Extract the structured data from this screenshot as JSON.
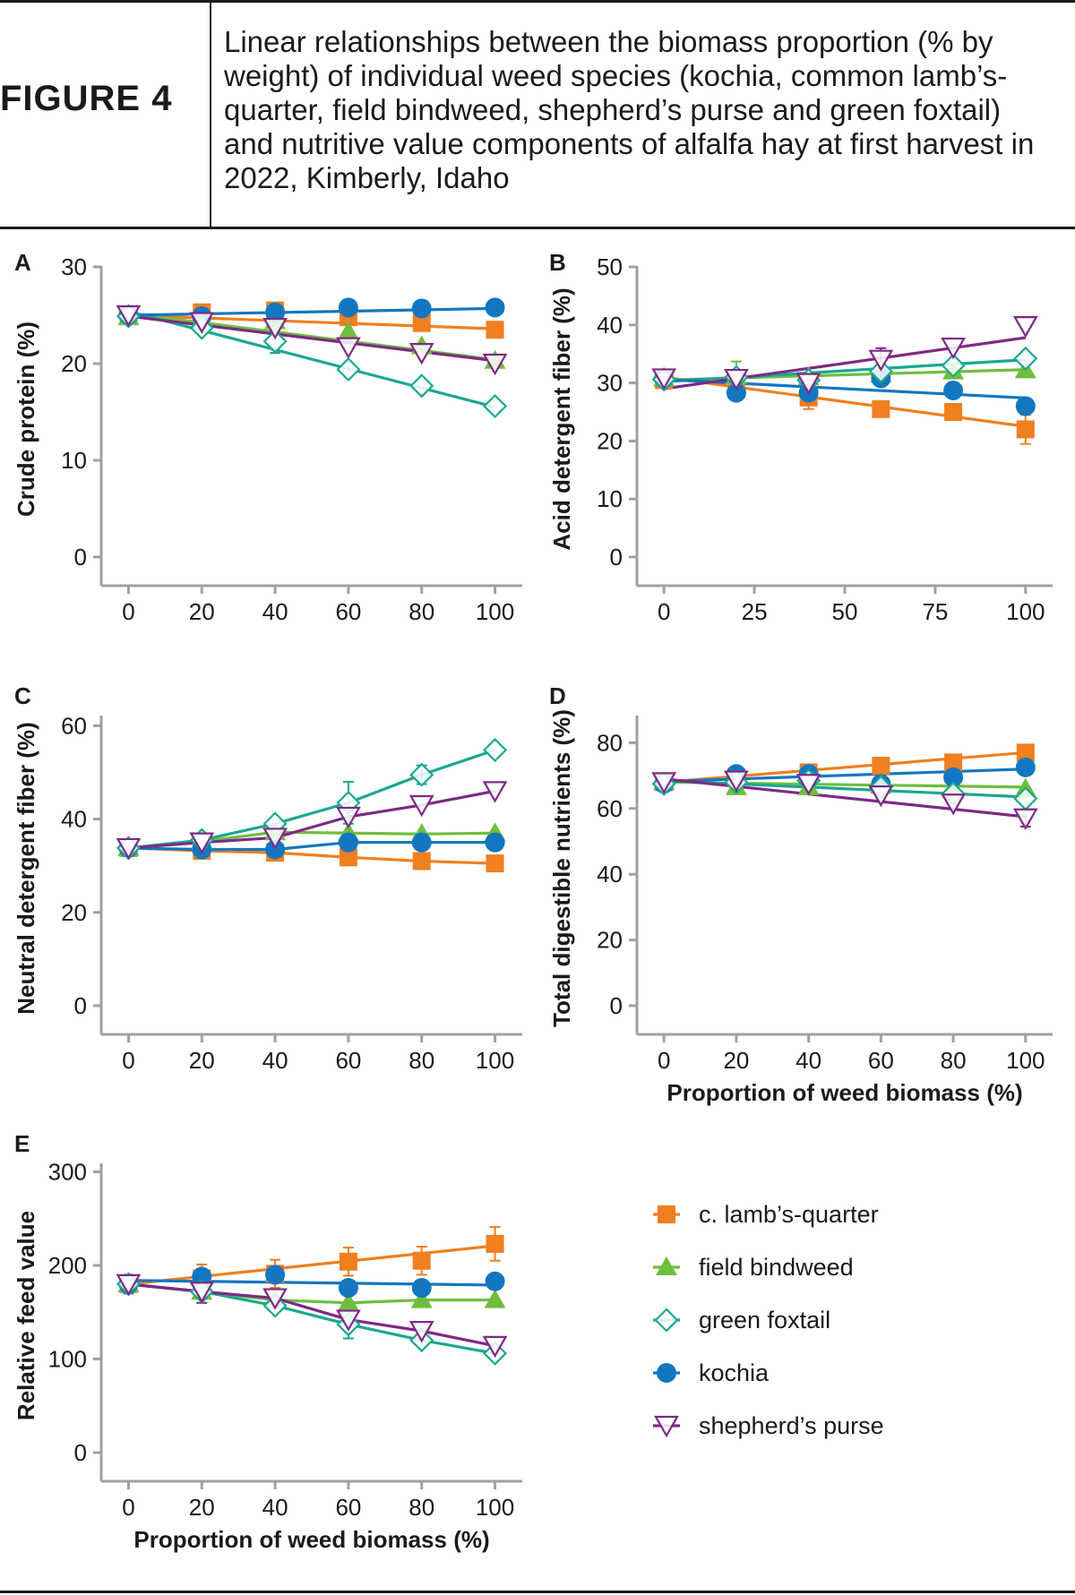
{
  "figure": {
    "label": "FIGURE 4",
    "title": "Linear relationships between the biomass proportion (% by weight) of individual weed species (kochia, common lamb’s-quarter, field bindweed, shepherd’s purse and green foxtail) and nutritive value components of alfalfa hay at first harvest in 2022, Kimberly, Idaho"
  },
  "colors": {
    "lambsquarter": "#f07f1f",
    "bindweed": "#6fbe3f",
    "foxtail": "#1aa88f",
    "kochia": "#1277c0",
    "shepherd": "#7d2a85",
    "axis": "#a0a0a0"
  },
  "legend": [
    {
      "key": "lambsquarter",
      "label": "c. lamb’s-quarter",
      "marker": "square-filled"
    },
    {
      "key": "bindweed",
      "label": "field bindweed",
      "marker": "triangle-filled"
    },
    {
      "key": "foxtail",
      "label": "green foxtail",
      "marker": "diamond-open"
    },
    {
      "key": "kochia",
      "label": "kochia",
      "marker": "circle-filled"
    },
    {
      "key": "shepherd",
      "label": "shepherd’s purse",
      "marker": "triangle-down-open"
    }
  ],
  "chart_data": [
    {
      "panel": "A",
      "type": "scatter",
      "ylabel": "Crude protein (%)",
      "xlabel": "",
      "x": [
        0,
        20,
        40,
        60,
        80,
        100
      ],
      "xticks": [
        0,
        20,
        40,
        60,
        80,
        100
      ],
      "yticks": [
        0,
        10,
        20,
        30
      ],
      "xlim": [
        -5,
        105
      ],
      "ylim": [
        0,
        30
      ],
      "series": [
        {
          "key": "lambsquarter",
          "values": [
            25,
            25.3,
            25.5,
            24.8,
            24.2,
            23.5
          ],
          "fit": [
            25,
            23.6
          ]
        },
        {
          "key": "bindweed",
          "values": [
            24.8,
            24.6,
            24.4,
            23.3,
            21.8,
            20.3
          ],
          "fit": [
            25.2,
            20.4
          ]
        },
        {
          "key": "foxtail",
          "values": [
            24.9,
            23.7,
            22.3,
            19.4,
            17.7,
            15.6
          ],
          "fit": [
            25.4,
            15.5
          ]
        },
        {
          "key": "kochia",
          "values": [
            25,
            24.9,
            25.3,
            25.8,
            25.7,
            25.8
          ],
          "fit": [
            25,
            25.7
          ]
        },
        {
          "key": "shepherd",
          "values": [
            25,
            24.3,
            23.7,
            21.7,
            21.1,
            20
          ],
          "fit": [
            24.9,
            20.3
          ]
        }
      ],
      "errors": [
        {
          "key": "foxtail",
          "x": 40,
          "y": 22.3,
          "err": 1.2
        }
      ]
    },
    {
      "panel": "B",
      "type": "scatter",
      "ylabel": "Acid detergent fiber (%)",
      "xlabel": "",
      "x": [
        0,
        20,
        40,
        60,
        80,
        100
      ],
      "xticks": [
        0,
        25,
        50,
        75,
        100
      ],
      "yticks": [
        0,
        10,
        20,
        30,
        40,
        50
      ],
      "xlim": [
        -5,
        105
      ],
      "ylim": [
        0,
        50
      ],
      "series": [
        {
          "key": "lambsquarter",
          "values": [
            30.5,
            29.5,
            27.5,
            25.5,
            25,
            22
          ],
          "fit": [
            31,
            22.5
          ]
        },
        {
          "key": "bindweed",
          "values": [
            30.8,
            31.2,
            31,
            31.5,
            32,
            32.2
          ],
          "fit": [
            30.5,
            32.3
          ]
        },
        {
          "key": "foxtail",
          "values": [
            30.6,
            31,
            30.5,
            32,
            33,
            34.2
          ],
          "fit": [
            30.2,
            34
          ]
        },
        {
          "key": "kochia",
          "values": [
            30.8,
            28.3,
            28.3,
            30.8,
            28.7,
            26
          ],
          "fit": [
            30.6,
            27.4
          ]
        },
        {
          "key": "shepherd",
          "values": [
            30.8,
            30.7,
            30,
            34,
            36.1,
            39.8
          ],
          "fit": [
            29,
            37.8
          ]
        }
      ],
      "errors": [
        {
          "key": "bindweed",
          "x": 20,
          "y": 31.2,
          "err": 2.5
        },
        {
          "key": "lambsquarter",
          "x": 40,
          "y": 27.5,
          "err": 2
        },
        {
          "key": "shepherd",
          "x": 60,
          "y": 34,
          "err": 2
        },
        {
          "key": "lambsquarter",
          "x": 100,
          "y": 22,
          "err": 2.5
        }
      ]
    },
    {
      "panel": "C",
      "type": "scatter",
      "ylabel": "Neutral detergent fiber (%)",
      "xlabel": "",
      "x": [
        0,
        20,
        40,
        60,
        80,
        100
      ],
      "xticks": [
        0,
        20,
        40,
        60,
        80,
        100
      ],
      "yticks": [
        0,
        20,
        40,
        60
      ],
      "xlim": [
        -5,
        105
      ],
      "ylim": [
        0,
        62
      ],
      "series": [
        {
          "key": "lambsquarter",
          "values": [
            33.8,
            33.2,
            32.8,
            31.8,
            31,
            30.5
          ],
          "fit": [
            33.8,
            31
          ],
          "fit_type": "curve"
        },
        {
          "key": "bindweed",
          "values": [
            33.8,
            35.2,
            37.2,
            37,
            36.8,
            37
          ],
          "fit": [
            33.8,
            37
          ],
          "fit_type": "curve"
        },
        {
          "key": "foxtail",
          "values": [
            33.8,
            35.5,
            39,
            43.5,
            49.5,
            54.8
          ],
          "fit": [
            33.8,
            54.8
          ],
          "fit_type": "curve"
        },
        {
          "key": "kochia",
          "values": [
            33.8,
            33.5,
            33.5,
            35,
            35,
            35
          ],
          "fit": [
            33.8,
            35
          ],
          "fit_type": "curve"
        },
        {
          "key": "shepherd",
          "values": [
            33.8,
            35,
            36,
            40.5,
            43,
            46
          ],
          "fit": [
            33.8,
            46
          ],
          "fit_type": "curve"
        }
      ],
      "errors": [
        {
          "key": "foxtail",
          "x": 60,
          "y": 43.5,
          "err": 4.5
        },
        {
          "key": "foxtail",
          "x": 80,
          "y": 49.5,
          "err": 2
        }
      ]
    },
    {
      "panel": "D",
      "type": "scatter",
      "ylabel": "Total digestible nutrients (%)",
      "xlabel": "Proportion of weed biomass (%)",
      "x": [
        0,
        20,
        40,
        60,
        80,
        100
      ],
      "xticks": [
        0,
        20,
        40,
        60,
        80,
        100
      ],
      "yticks": [
        0,
        20,
        40,
        60,
        80
      ],
      "xlim": [
        -5,
        105
      ],
      "ylim": [
        0,
        88
      ],
      "series": [
        {
          "key": "lambsquarter",
          "values": [
            68,
            69.5,
            71,
            73,
            74,
            77
          ],
          "fit": [
            68,
            77
          ]
        },
        {
          "key": "bindweed",
          "values": [
            68,
            66.5,
            66.5,
            67,
            65.5,
            66
          ],
          "fit": [
            68,
            66.5
          ]
        },
        {
          "key": "foxtail",
          "values": [
            67.5,
            68,
            68.5,
            66.5,
            64.5,
            63
          ],
          "fit": [
            68.5,
            63.5
          ]
        },
        {
          "key": "kochia",
          "values": [
            67.5,
            70.5,
            70.5,
            67.5,
            69.5,
            72.5
          ],
          "fit": [
            68.2,
            72
          ]
        },
        {
          "key": "shepherd",
          "values": [
            68,
            68.5,
            67.5,
            64,
            61.5,
            57
          ],
          "fit": [
            69,
            57.5
          ]
        }
      ],
      "errors": [
        {
          "key": "shepherd",
          "x": 100,
          "y": 57,
          "err": 2.5
        }
      ]
    },
    {
      "panel": "E",
      "type": "scatter",
      "ylabel": "Relative feed value",
      "xlabel": "Proportion of weed biomass (%)",
      "x": [
        0,
        20,
        40,
        60,
        80,
        100
      ],
      "xticks": [
        0,
        20,
        40,
        60,
        80,
        100
      ],
      "yticks": [
        0,
        100,
        200,
        300
      ],
      "xlim": [
        -5,
        105
      ],
      "ylim": [
        0,
        310
      ],
      "series": [
        {
          "key": "lambsquarter",
          "values": [
            180,
            186,
            191,
            204,
            205,
            223
          ],
          "fit": [
            180,
            221
          ]
        },
        {
          "key": "bindweed",
          "values": [
            180,
            172,
            163,
            160,
            163,
            163
          ],
          "fit": [
            180,
            163
          ],
          "fit_type": "curve"
        },
        {
          "key": "foxtail",
          "values": [
            180,
            172,
            157,
            137,
            120,
            106
          ],
          "fit": [
            180,
            106
          ],
          "fit_type": "curve"
        },
        {
          "key": "kochia",
          "values": [
            180,
            188,
            190,
            176,
            176,
            183
          ],
          "fit": [
            184,
            179
          ]
        },
        {
          "key": "shepherd",
          "values": [
            180,
            172,
            165,
            142,
            130,
            114
          ],
          "fit": [
            180,
            116
          ],
          "fit_type": "curve"
        }
      ],
      "errors": [
        {
          "key": "lambsquarter",
          "x": 20,
          "y": 186,
          "err": 15
        },
        {
          "key": "lambsquarter",
          "x": 40,
          "y": 191,
          "err": 15
        },
        {
          "key": "lambsquarter",
          "x": 60,
          "y": 204,
          "err": 15
        },
        {
          "key": "lambsquarter",
          "x": 80,
          "y": 205,
          "err": 15
        },
        {
          "key": "lambsquarter",
          "x": 100,
          "y": 223,
          "err": 18
        },
        {
          "key": "foxtail",
          "x": 60,
          "y": 137,
          "err": 15
        },
        {
          "key": "kochia",
          "x": 0,
          "y": 180,
          "err": 10
        },
        {
          "key": "shepherd",
          "x": 20,
          "y": 172,
          "err": 12
        }
      ]
    }
  ]
}
